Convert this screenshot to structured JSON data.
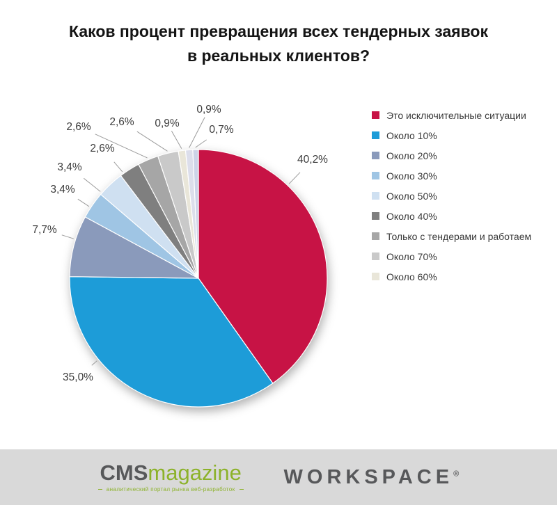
{
  "title": {
    "line1": "Каков процент превращения всех тендерных заявок",
    "line2": "в реальных клиентов?"
  },
  "chart_data": {
    "type": "pie",
    "title": "Каков процент превращения всех тендерных заявок в реальных клиентов?",
    "legend_position": "right",
    "slices": [
      {
        "label": "Это исключительные ситуации",
        "value": 40.2,
        "display": "40,2%",
        "color": "#c71345"
      },
      {
        "label": "Около 10%",
        "value": 35.0,
        "display": "35,0%",
        "color": "#1d9cd8"
      },
      {
        "label": "Около 20%",
        "value": 7.7,
        "display": "7,7%",
        "color": "#8a9abb"
      },
      {
        "label": "Около 30%",
        "value": 3.4,
        "display": "3,4%",
        "color": "#9fc5e4"
      },
      {
        "label": "Около 50%",
        "value": 3.4,
        "display": "3,4%",
        "color": "#cfe0f1"
      },
      {
        "label": "Около 40%",
        "value": 2.6,
        "display": "2,6%",
        "color": "#7f7f7f"
      },
      {
        "label": "Только с тендерами и работаем",
        "value": 2.6,
        "display": "2,6%",
        "color": "#a6a6a6"
      },
      {
        "label": "Около 70%",
        "value": 2.6,
        "display": "2,6%",
        "color": "#c9c9c9"
      },
      {
        "label": "Около 60%",
        "value": 0.9,
        "display": "0,9%",
        "color": "#e9e6d9"
      },
      {
        "label": "",
        "value": 0.9,
        "display": "0,9%",
        "color": "#dcdeeb"
      },
      {
        "label": "",
        "value": 0.7,
        "display": "0,7%",
        "color": "#cdd3e8"
      }
    ],
    "legend": [
      "Это исключительные ситуации",
      "Около 10%",
      "Около 20%",
      "Около 30%",
      "Около 50%",
      "Около 40%",
      "Только с тендерами и работаем",
      "Около 70%",
      "Около 60%"
    ]
  },
  "footer": {
    "cms": {
      "part1": "CMS",
      "part2": "magazine",
      "tagline": "аналитический портал рынка веб-разработок"
    },
    "workspace": {
      "text": "WORKSPACE",
      "registered": "®"
    }
  },
  "colors": {
    "footer_bg": "#d9d9d9",
    "title_text": "#141414",
    "cms_gray": "#57585a",
    "cms_green": "#8cb22a",
    "workspace_gray": "#57585a",
    "leader_line": "#9b9b9b"
  }
}
